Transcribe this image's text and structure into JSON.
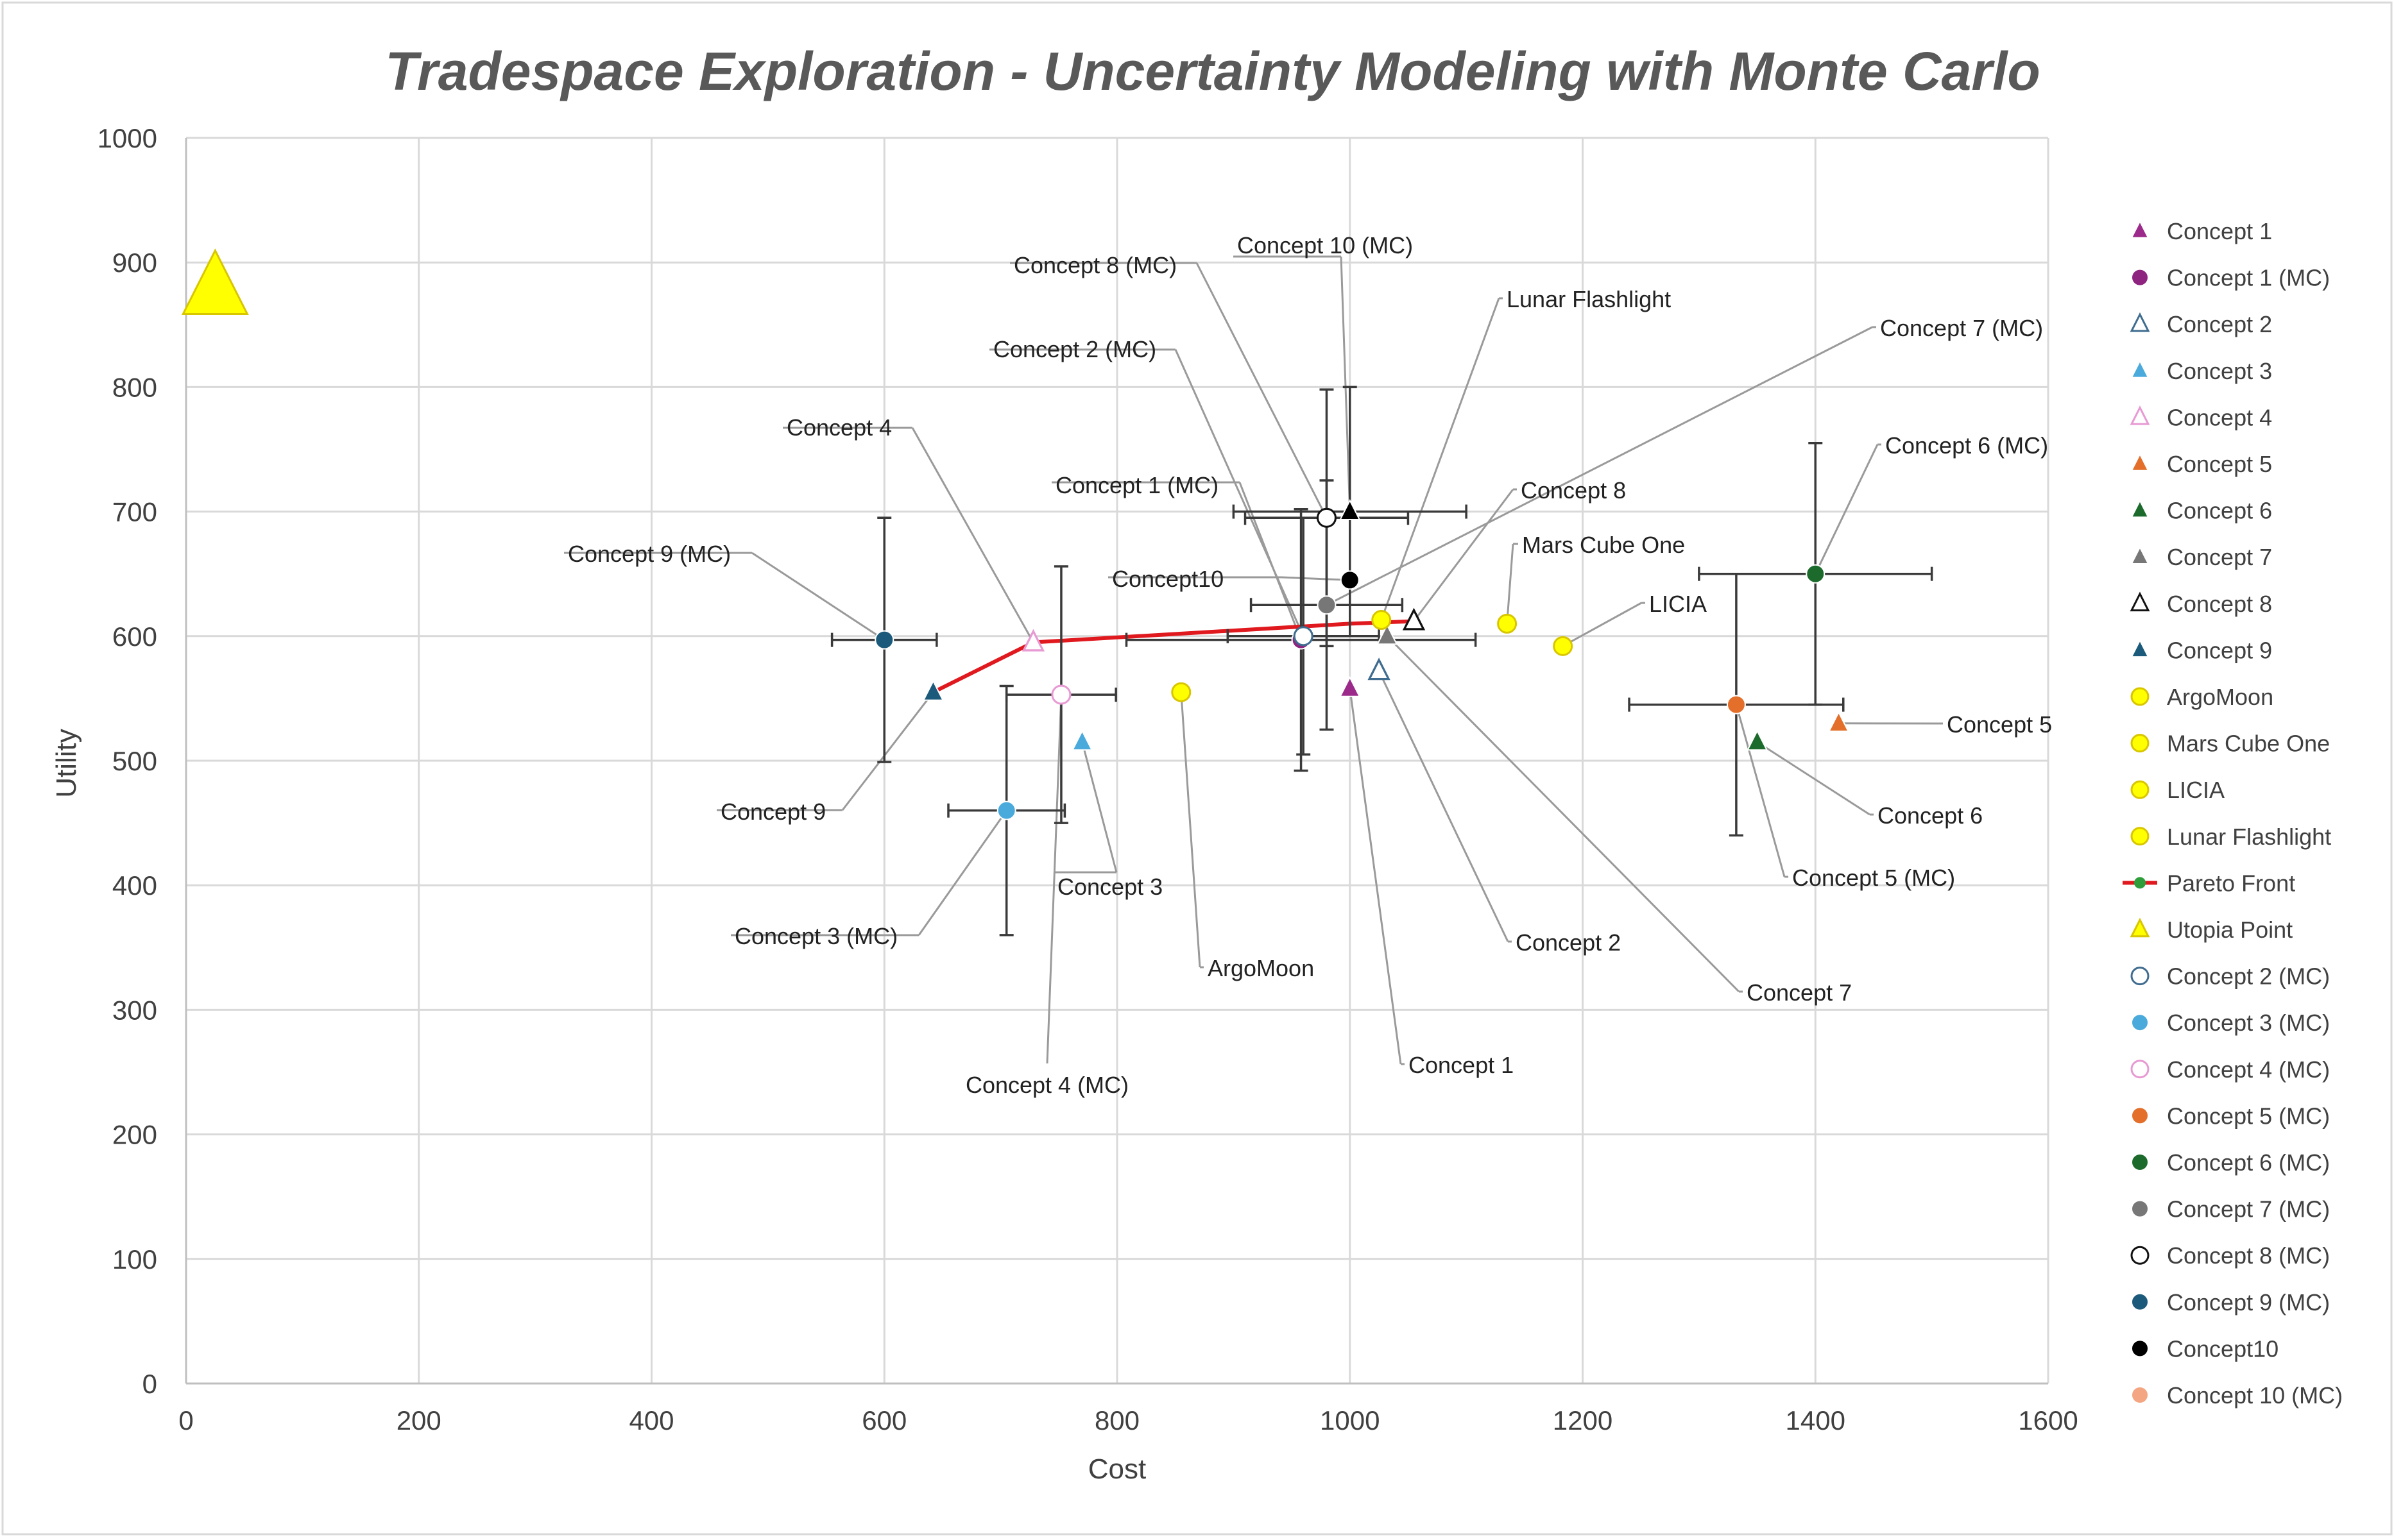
{
  "chart_data": {
    "type": "scatter",
    "title": "Tradespace Exploration - Uncertainty Modeling with Monte Carlo",
    "xlabel": "Cost",
    "ylabel": "Utility",
    "xlim": [
      0,
      1600
    ],
    "ylim": [
      0,
      1000
    ],
    "xticks": [
      0,
      200,
      400,
      600,
      800,
      1000,
      1200,
      1400,
      1600
    ],
    "yticks": [
      0,
      100,
      200,
      300,
      400,
      500,
      600,
      700,
      800,
      900,
      1000
    ],
    "grid": true,
    "legend_position": "right",
    "series": [
      {
        "name": "Concept 1",
        "marker": "triangle",
        "color": "#9b2a8a",
        "hollow": false,
        "points": [
          {
            "x": 1000,
            "y": 558
          }
        ]
      },
      {
        "name": "Concept 1 (MC)",
        "marker": "circle",
        "color": "#8e2480",
        "hollow": false,
        "points": [
          {
            "x": 958,
            "y": 597
          }
        ],
        "error": {
          "x": [
            150,
            150
          ],
          "y": [
            105,
            105
          ]
        }
      },
      {
        "name": "Concept 2",
        "marker": "triangle",
        "color": "#3f6c8f",
        "hollow": true,
        "points": [
          {
            "x": 1025,
            "y": 572
          }
        ]
      },
      {
        "name": "Concept 3",
        "marker": "triangle",
        "color": "#4aaadc",
        "hollow": false,
        "points": [
          {
            "x": 770,
            "y": 515
          }
        ]
      },
      {
        "name": "Concept 4",
        "marker": "triangle",
        "color": "#e79ad3",
        "hollow": true,
        "points": [
          {
            "x": 728,
            "y": 595
          }
        ]
      },
      {
        "name": "Concept 5",
        "marker": "triangle",
        "color": "#e36f2b",
        "hollow": false,
        "points": [
          {
            "x": 1420,
            "y": 530
          }
        ]
      },
      {
        "name": "Concept 6",
        "marker": "triangle",
        "color": "#1c6b2c",
        "hollow": false,
        "points": [
          {
            "x": 1350,
            "y": 515
          }
        ]
      },
      {
        "name": "Concept 7",
        "marker": "triangle",
        "color": "#777777",
        "hollow": false,
        "points": [
          {
            "x": 1032,
            "y": 600
          }
        ]
      },
      {
        "name": "Concept 8",
        "marker": "triangle",
        "color": "#111111",
        "hollow": true,
        "points": [
          {
            "x": 1055,
            "y": 612
          }
        ]
      },
      {
        "name": "Concept 9",
        "marker": "triangle",
        "color": "#1b5a7a",
        "hollow": false,
        "points": [
          {
            "x": 642,
            "y": 555
          }
        ]
      },
      {
        "name": "ArgoMoon",
        "marker": "circle",
        "color": "#ffff00",
        "hollow": false,
        "points": [
          {
            "x": 855,
            "y": 555
          }
        ]
      },
      {
        "name": "Mars Cube One",
        "marker": "circle",
        "color": "#ffff00",
        "hollow": false,
        "points": [
          {
            "x": 1135,
            "y": 610
          }
        ]
      },
      {
        "name": "LICIA",
        "marker": "circle",
        "color": "#ffff00",
        "hollow": false,
        "points": [
          {
            "x": 1183,
            "y": 592
          }
        ]
      },
      {
        "name": "Lunar Flashlight",
        "marker": "circle",
        "color": "#ffff00",
        "hollow": false,
        "points": [
          {
            "x": 1027,
            "y": 613
          }
        ]
      },
      {
        "name": "Pareto Front",
        "marker": "line",
        "color": "#e0191f",
        "points": [
          {
            "x": 642,
            "y": 555
          },
          {
            "x": 728,
            "y": 595
          },
          {
            "x": 1000,
            "y": 610
          },
          {
            "x": 1055,
            "y": 612
          }
        ]
      },
      {
        "name": "Utopia Point",
        "marker": "triangle",
        "color": "#ffff00",
        "hollow": false,
        "points": [
          {
            "x": 25,
            "y": 880
          }
        ]
      },
      {
        "name": "Concept 2 (MC)",
        "marker": "circle",
        "color": "#3f6c8f",
        "hollow": true,
        "points": [
          {
            "x": 960,
            "y": 600
          }
        ],
        "error": {
          "x": [
            65,
            65
          ],
          "y": [
            95,
            95
          ]
        }
      },
      {
        "name": "Concept 3 (MC)",
        "marker": "circle",
        "color": "#4aaadc",
        "hollow": false,
        "points": [
          {
            "x": 705,
            "y": 460
          }
        ],
        "error": {
          "x": [
            50,
            50
          ],
          "y": [
            100,
            100
          ]
        }
      },
      {
        "name": "Concept 4 (MC)",
        "marker": "circle",
        "color": "#e79ad3",
        "hollow": true,
        "points": [
          {
            "x": 752,
            "y": 553
          }
        ],
        "error": {
          "x": [
            47,
            47
          ],
          "y": [
            103,
            103
          ]
        }
      },
      {
        "name": "Concept 5 (MC)",
        "marker": "circle",
        "color": "#e36f2b",
        "hollow": false,
        "points": [
          {
            "x": 1332,
            "y": 545
          }
        ],
        "error": {
          "x": [
            92,
            92
          ],
          "y": [
            105,
            105
          ]
        }
      },
      {
        "name": "Concept 6 (MC)",
        "marker": "circle",
        "color": "#1c6b2c",
        "hollow": false,
        "points": [
          {
            "x": 1400,
            "y": 650
          }
        ],
        "error": {
          "x": [
            100,
            100
          ],
          "y": [
            105,
            105
          ]
        }
      },
      {
        "name": "Concept 7 (MC)",
        "marker": "circle",
        "color": "#777777",
        "hollow": false,
        "points": [
          {
            "x": 980,
            "y": 625
          }
        ],
        "error": {
          "x": [
            65,
            65
          ],
          "y": [
            100,
            100
          ]
        }
      },
      {
        "name": "Concept 8 (MC)",
        "marker": "circle",
        "color": "#111111",
        "hollow": true,
        "points": [
          {
            "x": 980,
            "y": 695
          }
        ],
        "error": {
          "x": [
            70,
            70
          ],
          "y": [
            103,
            103
          ]
        }
      },
      {
        "name": "Concept 9 (MC)",
        "marker": "circle",
        "color": "#1b5a7a",
        "hollow": false,
        "points": [
          {
            "x": 600,
            "y": 597
          }
        ],
        "error": {
          "x": [
            45,
            45
          ],
          "y": [
            98,
            98
          ]
        }
      },
      {
        "name": "Concept10",
        "marker": "circle",
        "color": "#000000",
        "hollow": false,
        "points": [
          {
            "x": 1000,
            "y": 645
          }
        ]
      },
      {
        "name": "Concept 10 (MC)",
        "marker": "triangle",
        "color": "#000000",
        "hollow": false,
        "legend_marker": "circle",
        "legend_color": "#f4a582",
        "points": [
          {
            "x": 1000,
            "y": 700
          }
        ],
        "error": {
          "x": [
            100,
            100
          ],
          "y": [
            100,
            100
          ]
        }
      }
    ],
    "annotations": [
      {
        "text": "Concept 8 (MC)",
        "x": 980,
        "y": 695
      },
      {
        "text": "Concept 10 (MC)",
        "x": 1000,
        "y": 700
      },
      {
        "text": "Lunar Flashlight",
        "x": 1027,
        "y": 613
      },
      {
        "text": "Concept 7 (MC)",
        "x": 980,
        "y": 625
      },
      {
        "text": "Concept 2 (MC)",
        "x": 960,
        "y": 600
      },
      {
        "text": "Concept 4",
        "x": 728,
        "y": 595
      },
      {
        "text": "Concept 6 (MC)",
        "x": 1400,
        "y": 650
      },
      {
        "text": "Concept 1 (MC)",
        "x": 958,
        "y": 597
      },
      {
        "text": "Concept 8",
        "x": 1055,
        "y": 612
      },
      {
        "text": "Concept 9 (MC)",
        "x": 600,
        "y": 597
      },
      {
        "text": "Mars Cube One",
        "x": 1135,
        "y": 610
      },
      {
        "text": "Concept10",
        "x": 1000,
        "y": 645
      },
      {
        "text": "LICIA",
        "x": 1183,
        "y": 592
      },
      {
        "text": "Concept 5",
        "x": 1420,
        "y": 530
      },
      {
        "text": "Concept 9",
        "x": 642,
        "y": 555
      },
      {
        "text": "Concept 6",
        "x": 1350,
        "y": 515
      },
      {
        "text": "Concept 5 (MC)",
        "x": 1332,
        "y": 545
      },
      {
        "text": "Concept 3",
        "x": 770,
        "y": 515
      },
      {
        "text": "Concept 3 (MC)",
        "x": 705,
        "y": 460
      },
      {
        "text": "Concept 2",
        "x": 1025,
        "y": 572
      },
      {
        "text": "ArgoMoon",
        "x": 855,
        "y": 555
      },
      {
        "text": "Concept 7",
        "x": 1032,
        "y": 600
      },
      {
        "text": "Concept 1",
        "x": 1000,
        "y": 558
      },
      {
        "text": "Concept 4 (MC)",
        "x": 752,
        "y": 553
      }
    ]
  }
}
